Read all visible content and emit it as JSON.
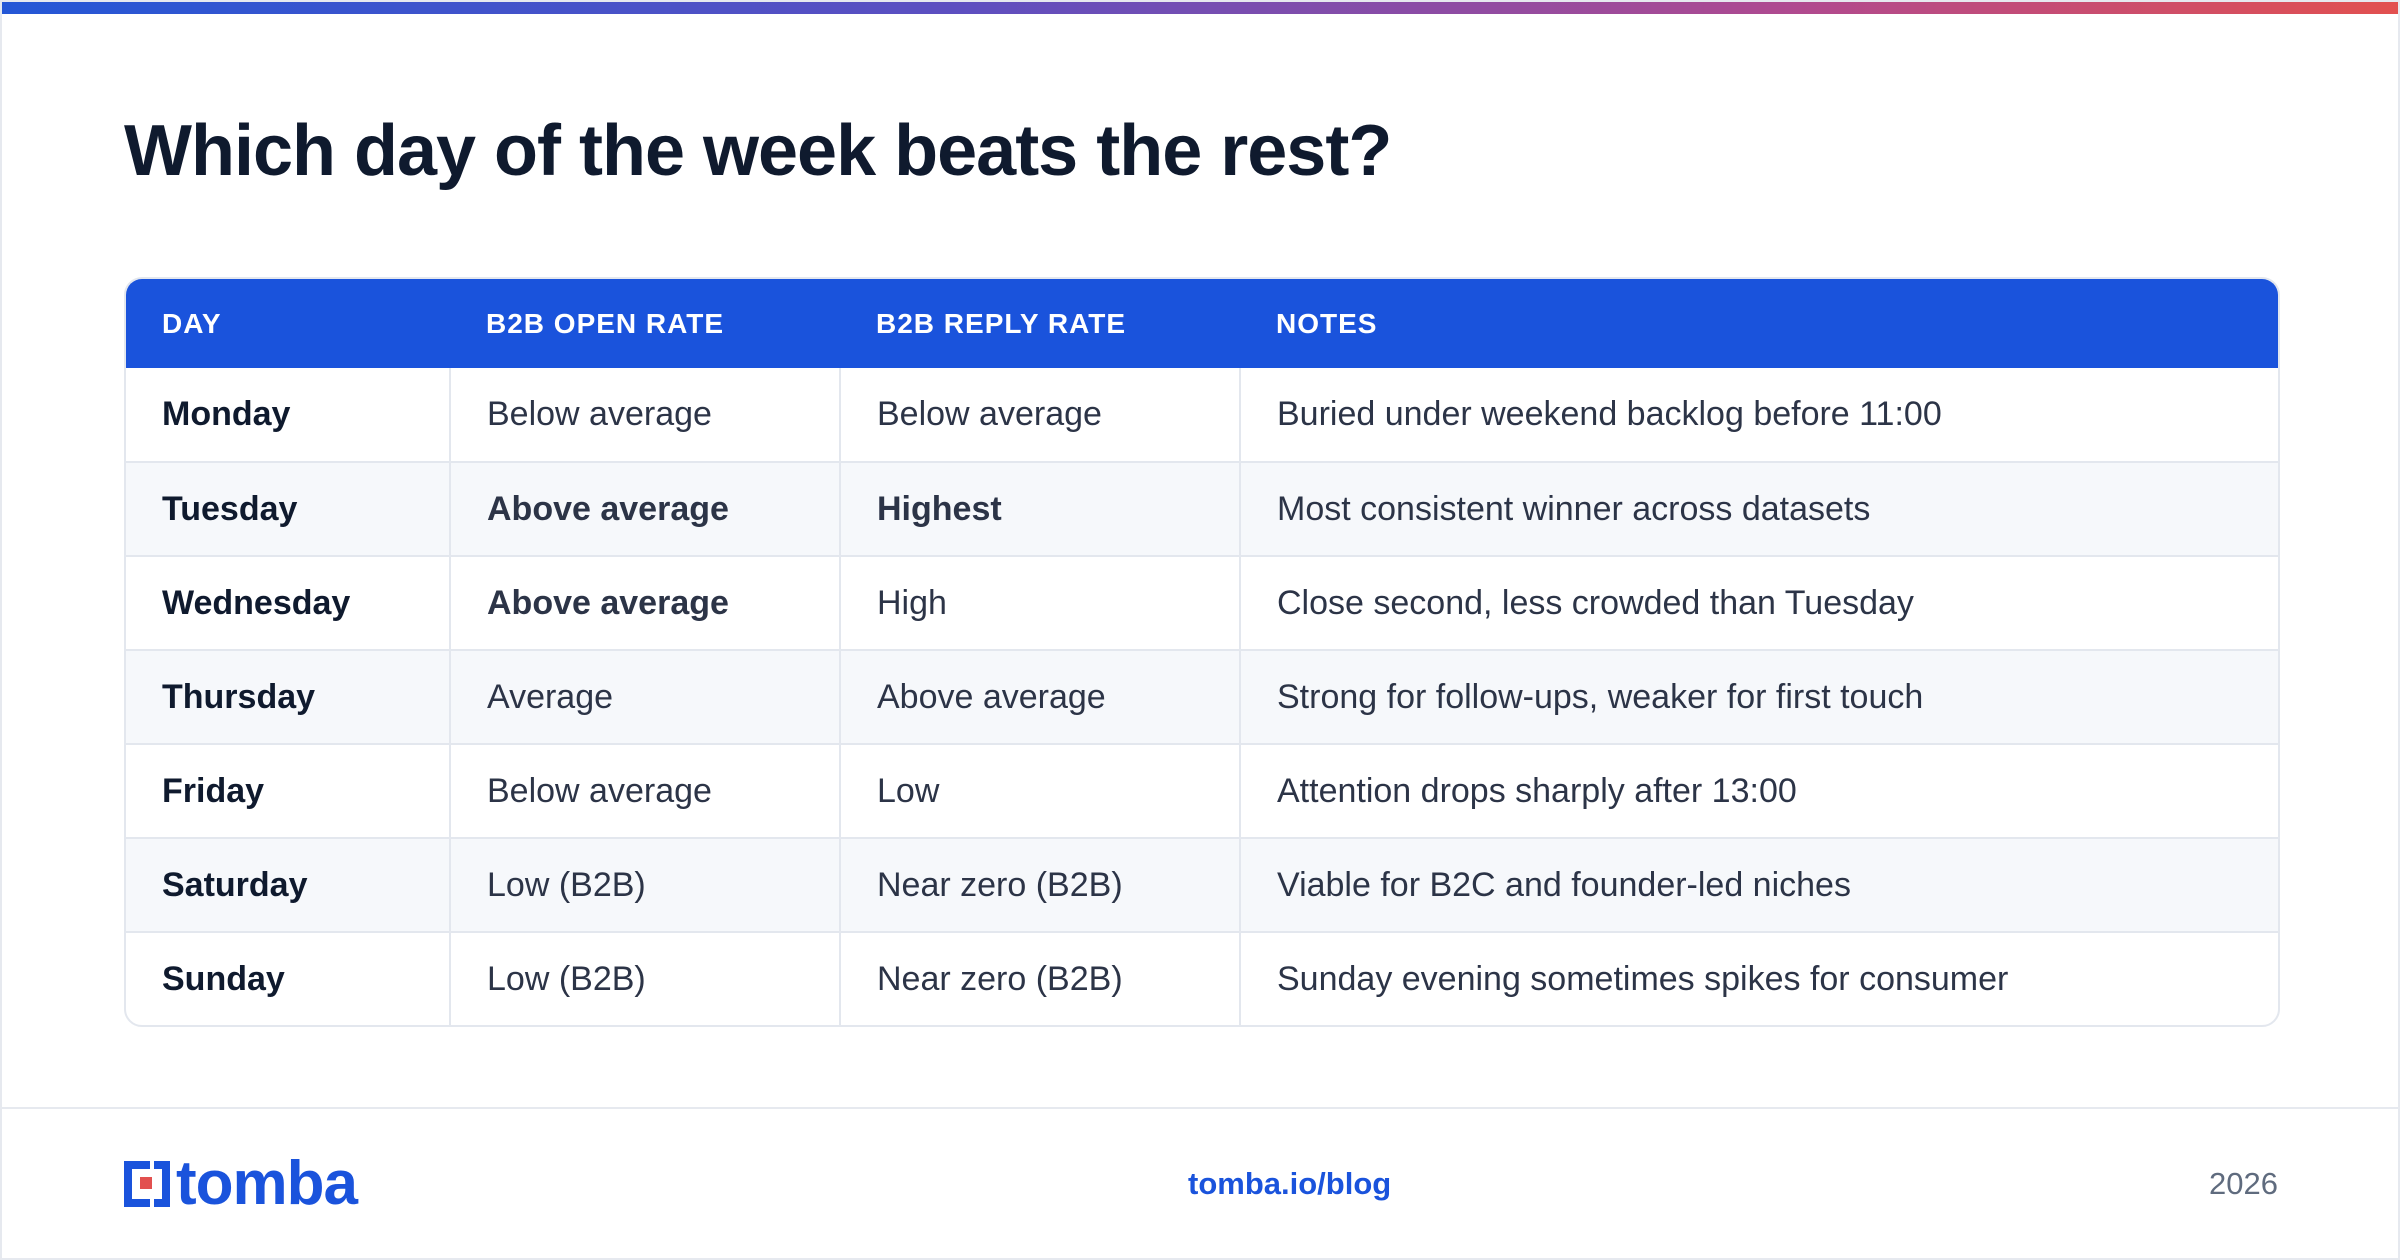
{
  "title": "Which day of the week beats the rest?",
  "table": {
    "headers": [
      "DAY",
      "B2B OPEN RATE",
      "B2B REPLY RATE",
      "NOTES"
    ],
    "rows": [
      {
        "day": "Monday",
        "open": "Below average",
        "reply": "Below average",
        "notes": "Buried under weekend backlog before 11:00"
      },
      {
        "day": "Tuesday",
        "open": "Above average",
        "reply": "Highest",
        "notes": "Most consistent winner across datasets"
      },
      {
        "day": "Wednesday",
        "open": "Above average",
        "reply": "High",
        "notes": "Close second, less crowded than Tuesday"
      },
      {
        "day": "Thursday",
        "open": "Average",
        "reply": "Above average",
        "notes": "Strong for follow-ups, weaker for first touch"
      },
      {
        "day": "Friday",
        "open": "Below average",
        "reply": "Low",
        "notes": "Attention drops sharply after 13:00"
      },
      {
        "day": "Saturday",
        "open": "Low (B2B)",
        "reply": "Near zero (B2B)",
        "notes": "Viable for B2C and founder-led niches"
      },
      {
        "day": "Sunday",
        "open": "Low (B2B)",
        "reply": "Near zero (B2B)",
        "notes": "Sunday evening sometimes spikes for consumer"
      }
    ]
  },
  "footer": {
    "logo_text": "tomba",
    "link": "tomba.io/blog",
    "year": "2026"
  },
  "colors": {
    "accent": "#1a53dc",
    "title": "#0f1a2e",
    "gradient": [
      "#2457d6",
      "#e2504f"
    ]
  },
  "icons": {
    "logo": "tomba-logo-icon"
  }
}
